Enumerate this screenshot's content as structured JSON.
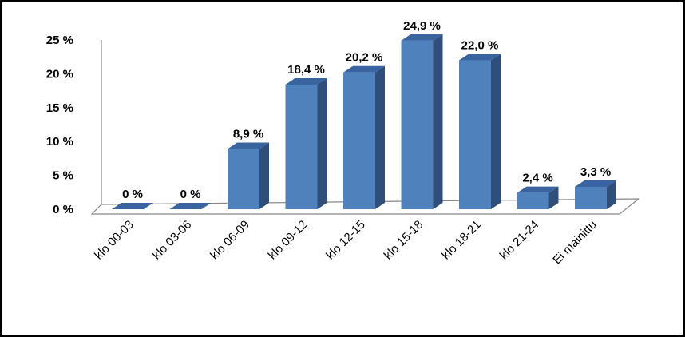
{
  "chart_data": {
    "type": "bar",
    "categories": [
      "klo 00-03",
      "klo 03-06",
      "klo 06-09",
      "klo 09-12",
      "klo 12-15",
      "klo 15-18",
      "klo 18-21",
      "klo 21-24",
      "Ei mainittu"
    ],
    "values": [
      0,
      0,
      8.9,
      18.4,
      20.2,
      24.9,
      22.0,
      2.4,
      3.3
    ],
    "data_labels": [
      "0 %",
      "0 %",
      "8,9 %",
      "18,4 %",
      "20,2 %",
      "24,9 %",
      "22,0 %",
      "2,4 %",
      "3,3 %"
    ],
    "yticks": [
      0,
      5,
      10,
      15,
      20,
      25
    ],
    "ytick_labels": [
      "0 %",
      "5 %",
      "10 %",
      "15 %",
      "20 %",
      "25 %"
    ],
    "ylim": [
      0,
      25
    ],
    "grid": false,
    "legend": "none",
    "colors": {
      "bar_front": "#4F81BD",
      "bar_side": "#2F4E7A",
      "bar_top": "#3A64A0",
      "axis": "#888888"
    }
  }
}
